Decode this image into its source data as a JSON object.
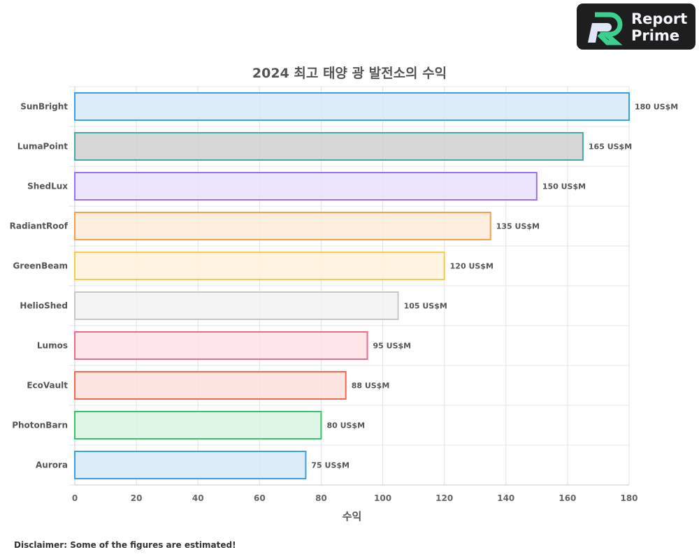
{
  "logo": {
    "line1": "Report",
    "line2": "Prime"
  },
  "disclaimer": "Disclaimer: Some of the figures are estimated!",
  "chart_data": {
    "type": "bar",
    "orientation": "horizontal",
    "title": "2024 최고 태양 광 발전소의 수익",
    "xlabel": "수익",
    "ylabel": "",
    "xlim": [
      0,
      180
    ],
    "xticks": [
      0,
      20,
      40,
      60,
      80,
      100,
      120,
      140,
      160,
      180
    ],
    "grid": true,
    "unit_suffix": " US$M",
    "categories": [
      "SunBright",
      "LumaPoint",
      "ShedLux",
      "RadiantRoof",
      "GreenBeam",
      "HelioShed",
      "Lumos",
      "EcoVault",
      "PhotonBarn",
      "Aurora"
    ],
    "values": [
      180,
      165,
      150,
      135,
      120,
      105,
      95,
      88,
      80,
      75
    ],
    "data_labels": [
      "180 US$M",
      "165 US$M",
      "150 US$M",
      "135 US$M",
      "120 US$M",
      "105 US$M",
      "95 US$M",
      "88 US$M",
      "80 US$M",
      "75 US$M"
    ],
    "fill_colors": [
      "#d6eaf8",
      "#cfd0cf",
      "#e8e0fd",
      "#fdebd9",
      "#fff3da",
      "#f2f2f2",
      "#fde0e6",
      "#fde0dc",
      "#d8f4e2",
      "#d6eaf8"
    ],
    "border_colors": [
      "#3ea0e4",
      "#45aaa6",
      "#9d6ff2",
      "#f5a04a",
      "#f7c94e",
      "#c8c8c8",
      "#f06a8a",
      "#f06a50",
      "#3ac46a",
      "#3ea0e4"
    ]
  }
}
